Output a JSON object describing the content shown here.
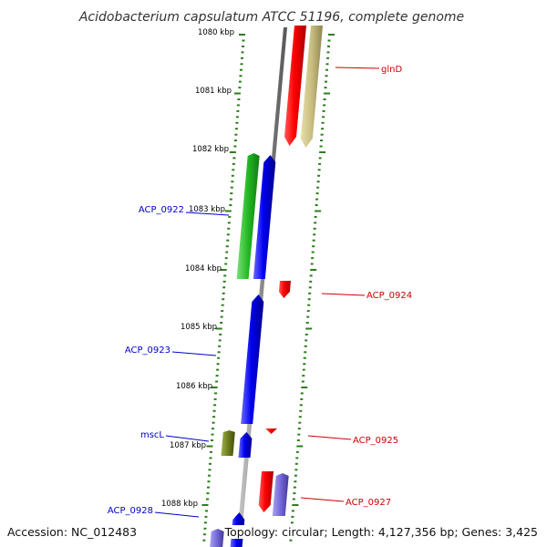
{
  "title": "Acidobacterium capsulatum ATCC 51196, complete genome",
  "footer": {
    "accession": "Accession: NC_012483",
    "topology": "Topology: circular; Length: 4,127,356 bp; Genes: 3,425"
  },
  "colors": {
    "backbone": "#8a8a8a",
    "tick": "#2e7d1e",
    "forward_label": "#cc0000",
    "reverse_label": "#0000cc"
  },
  "ruler_labels": [
    "1080 kbp",
    "1081 kbp",
    "1082 kbp",
    "1083 kbp",
    "1084 kbp",
    "1085 kbp",
    "1086 kbp",
    "1087 kbp",
    "1088 kbp"
  ],
  "gene_labels": [
    {
      "name": "glnD",
      "strand": "forward"
    },
    {
      "name": "ACP_0924",
      "strand": "forward"
    },
    {
      "name": "ACP_0925",
      "strand": "forward"
    },
    {
      "name": "ACP_0927",
      "strand": "forward"
    },
    {
      "name": "ACP_0922",
      "strand": "reverse"
    },
    {
      "name": "ACP_0923",
      "strand": "reverse"
    },
    {
      "name": "mscL",
      "strand": "reverse"
    },
    {
      "name": "ACP_0928",
      "strand": "reverse"
    }
  ]
}
